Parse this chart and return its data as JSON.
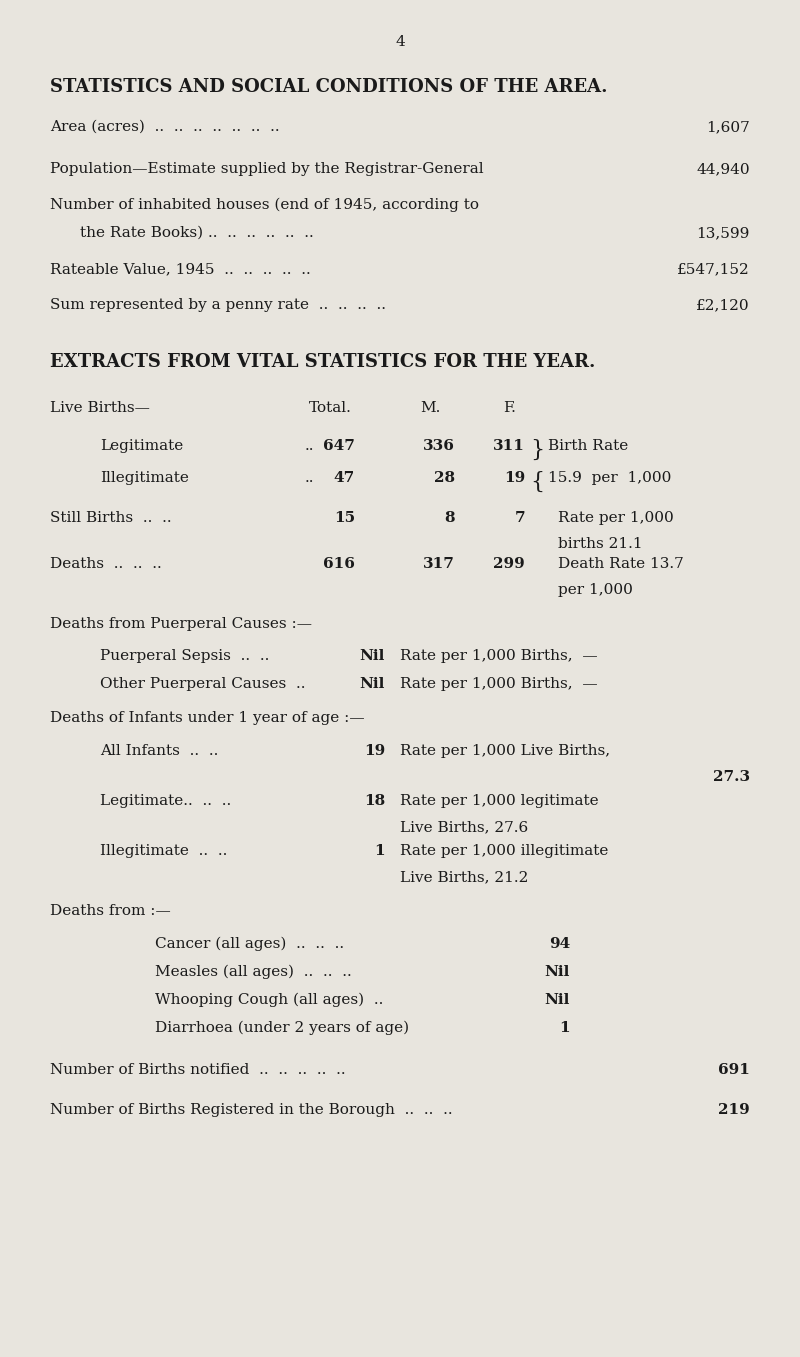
{
  "bg_color": "#e8e5de",
  "text_color": "#1a1a1a",
  "page_number": "4",
  "title1": "STATISTICS AND SOCIAL CONDITIONS OF THE AREA.",
  "title2": "EXTRACTS FROM VITAL STATISTICS FOR THE YEAR.",
  "figwidth": 8.0,
  "figheight": 13.57,
  "dpi": 100
}
